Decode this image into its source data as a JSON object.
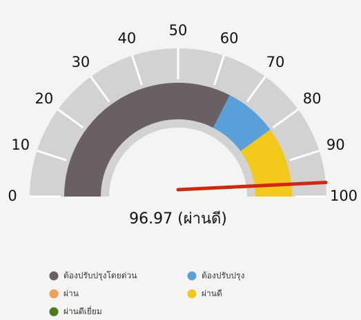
{
  "chart_data": {
    "type": "gauge",
    "xlim": [
      0,
      100
    ],
    "xticks": [
      0,
      10,
      20,
      30,
      40,
      50,
      60,
      70,
      80,
      90,
      100
    ],
    "value": 96.97,
    "value_label": "96.97 (ผ่านดี)",
    "needle_color": "#cc2a10",
    "track_color": "#d2d2d2",
    "series": [
      {
        "name": "ต้องปรับปรุงโดยด่วน",
        "color": "#686062",
        "values": [
          65
        ]
      },
      {
        "name": "ผ่าน",
        "color": "#f0a050",
        "values": [
          0
        ]
      },
      {
        "name": "ผ่านดีเยี่ยม",
        "color": "#4d7a1c",
        "values": [
          0
        ]
      },
      {
        "name": "ต้องปรับปรุง",
        "color": "#5aa0d8",
        "values": [
          15
        ]
      },
      {
        "name": "ผ่านดี",
        "color": "#f2c81a",
        "values": [
          20
        ]
      }
    ]
  }
}
